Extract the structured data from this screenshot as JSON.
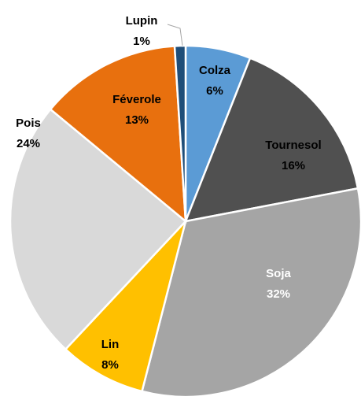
{
  "chart_data": {
    "type": "pie",
    "categories": [
      "Colza",
      "Tournesol",
      "Soja",
      "Lin",
      "Pois",
      "Féverole",
      "Lupin"
    ],
    "values": [
      6,
      16,
      32,
      8,
      24,
      13,
      1
    ],
    "value_labels": [
      "6%",
      "16%",
      "32%",
      "8%",
      "24%",
      "13%",
      "1%"
    ],
    "colors": [
      "#5b9bd5",
      "#505050",
      "#a5a5a5",
      "#ffc000",
      "#d9d9d9",
      "#e8700e",
      "#1f4e79"
    ]
  }
}
